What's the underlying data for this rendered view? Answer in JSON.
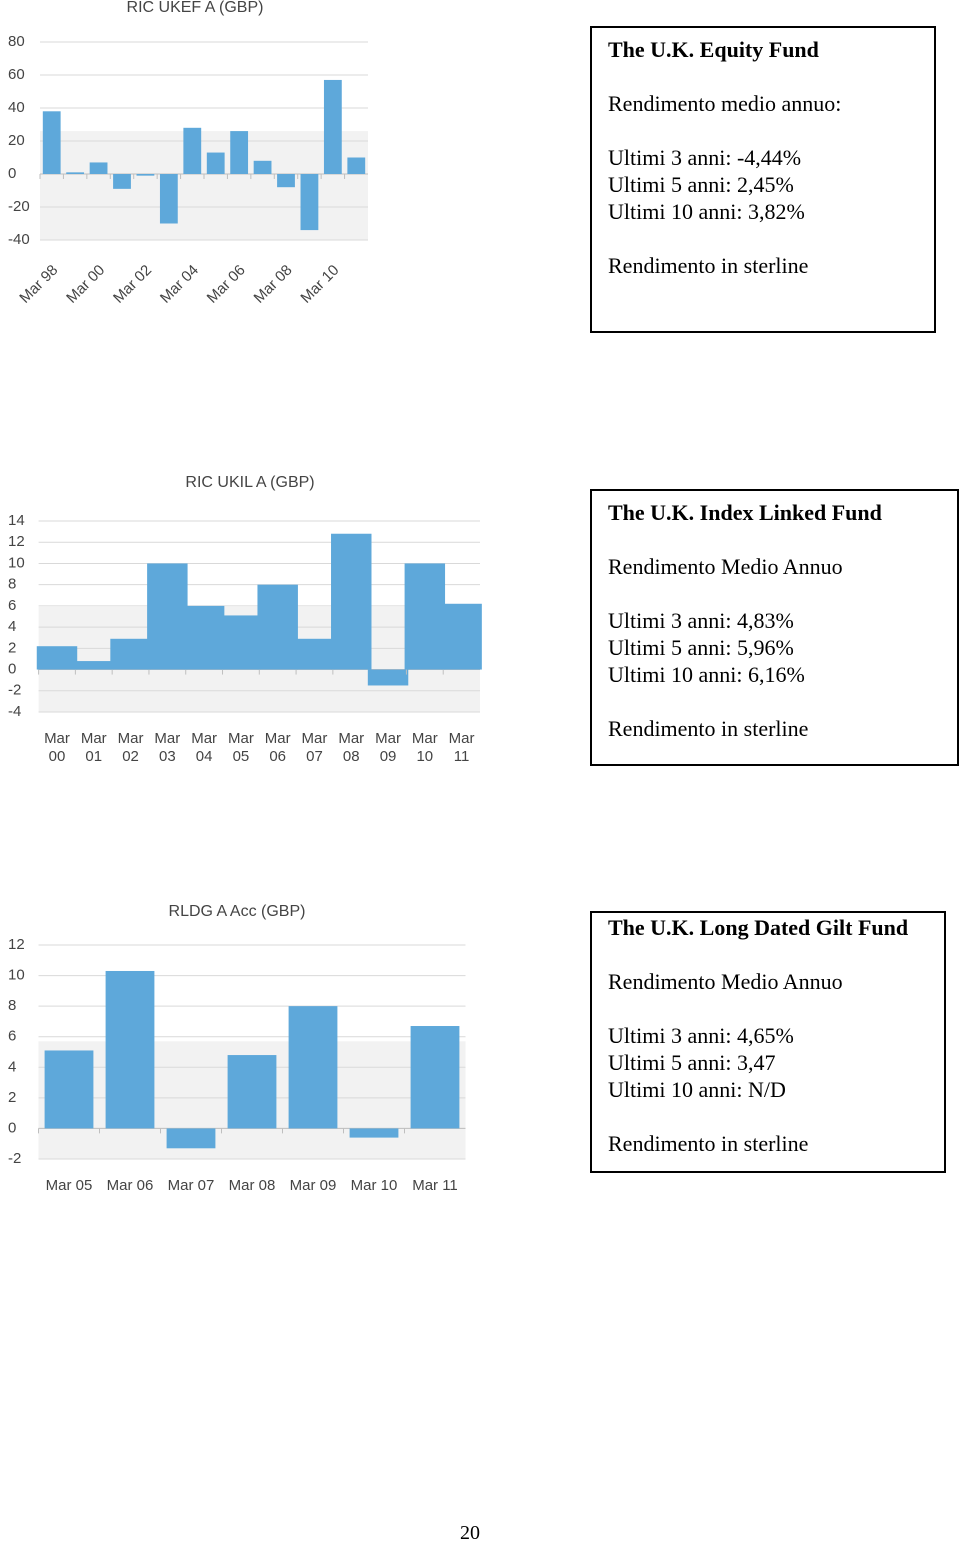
{
  "chart_data": [
    {
      "type": "bar",
      "title": "RIC UKEF A (GBP)",
      "categories": [
        "Mar 98",
        null,
        "Mar 00",
        null,
        "Mar 02",
        null,
        "Mar 04",
        null,
        "Mar 06",
        null,
        "Mar 08",
        null,
        "Mar 10",
        null
      ],
      "values": [
        38,
        1,
        7,
        -9,
        -1,
        -30,
        28,
        13,
        26,
        8,
        -8,
        -34,
        57,
        10
      ],
      "color": "#5ea8da",
      "ylim": [
        -40,
        80
      ],
      "yticks": [
        -40,
        -20,
        0,
        20,
        40,
        60,
        80
      ],
      "grid": true
    },
    {
      "type": "bar",
      "title": "RIC UKIL A (GBP)",
      "categories": [
        "Mar 00",
        "Mar 01",
        "Mar 02",
        "Mar 03",
        "Mar 04",
        "Mar 05",
        "Mar 06",
        "Mar 07",
        "Mar 08",
        "Mar 09",
        "Mar 10",
        "Mar 11"
      ],
      "values": [
        2.2,
        0.8,
        2.9,
        10,
        6,
        5.1,
        8,
        2.9,
        12.8,
        -1.5,
        10,
        6.2
      ],
      "color": "#5ea8da",
      "ylim": [
        -4,
        14
      ],
      "yticks": [
        -4,
        -2,
        0,
        2,
        4,
        6,
        8,
        10,
        12,
        14
      ],
      "grid": true
    },
    {
      "type": "bar",
      "title": "RLDG A Acc (GBP)",
      "categories": [
        "Mar 05",
        "Mar 06",
        "Mar 07",
        "Mar 08",
        "Mar 09",
        "Mar 10",
        "Mar 11"
      ],
      "values": [
        5.1,
        10.3,
        -1.3,
        4.8,
        8,
        -0.6,
        6.7
      ],
      "color": "#5ea8da",
      "ylim": [
        -2,
        12
      ],
      "yticks": [
        -2,
        0,
        2,
        4,
        6,
        8,
        10,
        12
      ],
      "grid": true
    }
  ],
  "boxes": [
    {
      "title": "The U.K. Equity Fund",
      "subtitle": "Rendimento medio annuo:",
      "lines": [
        "Ultimi 3 anni: -4,44%",
        "Ultimi 5 anni: 2,45%",
        "Ultimi 10 anni: 3,82%"
      ],
      "note": "Rendimento in sterline"
    },
    {
      "title": "The U.K. Index Linked Fund",
      "subtitle": "Rendimento Medio Annuo",
      "lines": [
        "Ultimi 3 anni: 4,83%",
        "Ultimi 5 anni: 5,96%",
        "Ultimi 10 anni: 6,16%"
      ],
      "note": "Rendimento in sterline"
    },
    {
      "title": "The U.K. Long Dated Gilt Fund",
      "subtitle": "Rendimento Medio Annuo",
      "lines": [
        "Ultimi 3 anni: 4,65%",
        "Ultimi 5 anni: 3,47",
        "Ultimi 10 anni: N/D"
      ],
      "note": "Rendimento in sterline"
    }
  ],
  "page_number": "20"
}
